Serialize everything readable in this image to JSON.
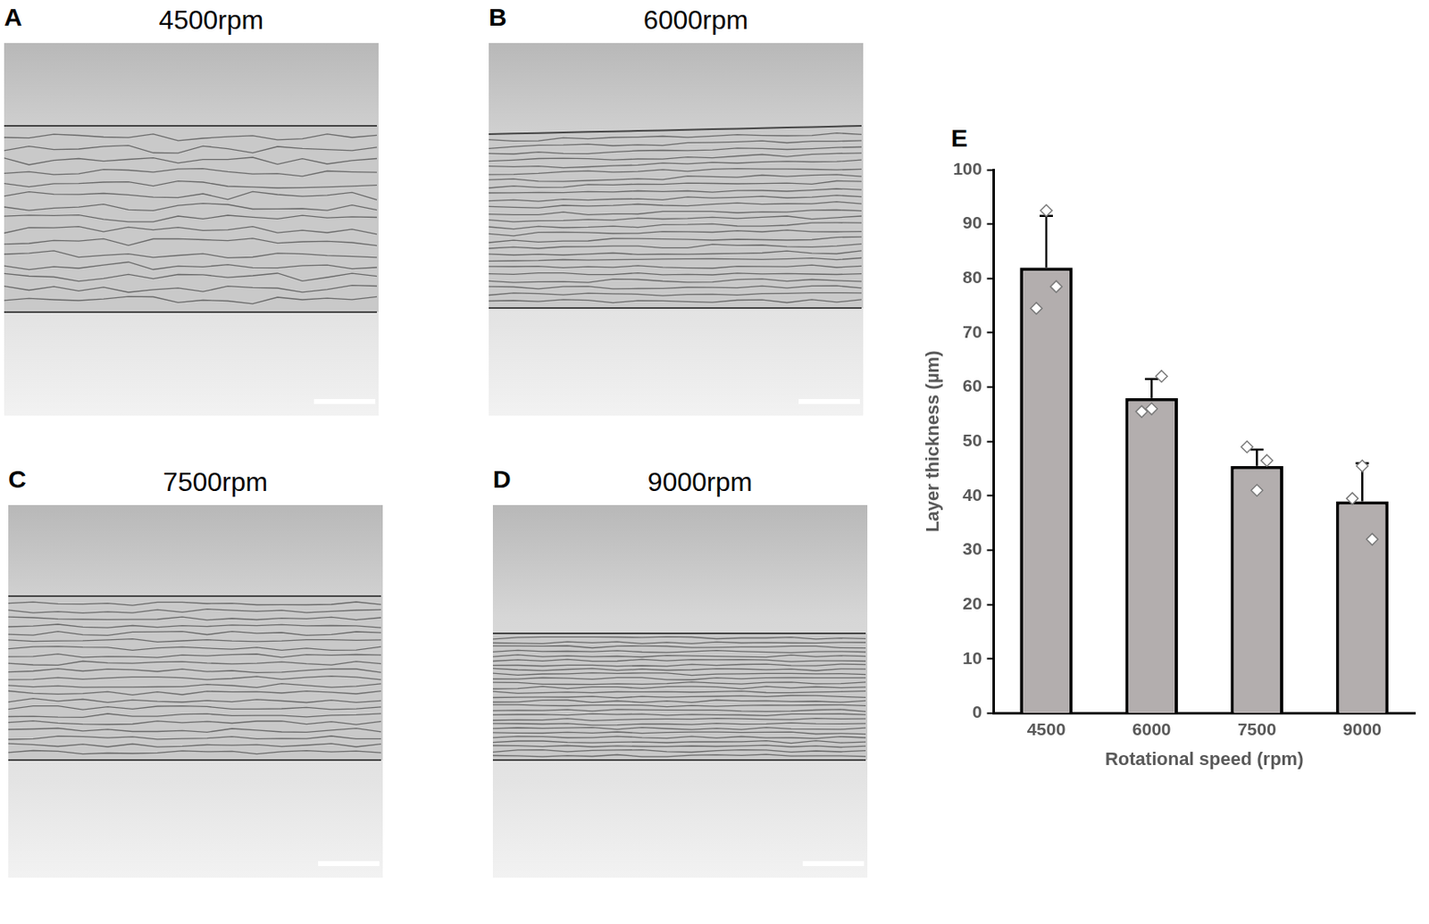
{
  "panels": [
    {
      "letter": "A",
      "title": "4500rpm"
    },
    {
      "letter": "B",
      "title": "6000rpm"
    },
    {
      "letter": "C",
      "title": "7500rpm"
    },
    {
      "letter": "D",
      "title": "9000rpm"
    }
  ],
  "chart_panel": "E",
  "chart_data": {
    "type": "bar",
    "categories": [
      "4500",
      "6000",
      "7500",
      "9000"
    ],
    "values": [
      82,
      58,
      45.5,
      39
    ],
    "errors": [
      9.5,
      3.5,
      3,
      7
    ],
    "points": [
      [
        92.5,
        74.5,
        78.5
      ],
      [
        56,
        55.5,
        62
      ],
      [
        41,
        49,
        46.5
      ],
      [
        45.5,
        39.5,
        32
      ]
    ],
    "color": "#b3aeae",
    "xlabel": "Rotational speed (rpm)",
    "ylabel": "Layer thickness (µm)",
    "ylim": [
      0,
      100
    ],
    "yticks": [
      0,
      10,
      20,
      30,
      40,
      50,
      60,
      70,
      80,
      90,
      100
    ],
    "grid": false
  }
}
